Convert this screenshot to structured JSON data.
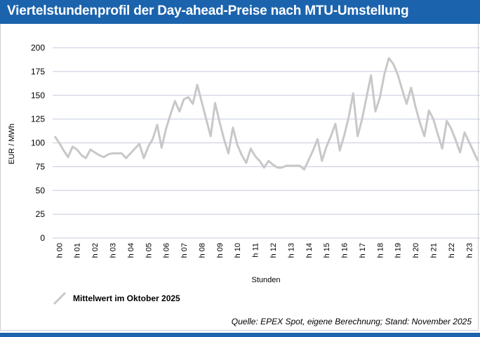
{
  "title": "Viertelstundenprofil der Day-ahead-Preise nach MTU-Umstellung",
  "source": "Quelle: EPEX Spot, eigene Berechnung; Stand: November 2025",
  "colors": {
    "brand": "#1b63ad",
    "line": "#c8c8c8",
    "grid": "#c5cbdb"
  },
  "chart_data": {
    "type": "line",
    "title": "Viertelstundenprofil der Day-ahead-Preise nach MTU-Umstellung",
    "xlabel": "Stunden",
    "ylabel": "EUR / MWh",
    "ylim": [
      0,
      200
    ],
    "yticks": [
      0,
      25,
      50,
      75,
      100,
      125,
      150,
      175,
      200
    ],
    "grid": true,
    "legend_position": "bottom-left",
    "xtick_labels": [
      "h 00",
      "h 01",
      "h 02",
      "h 03",
      "h 04",
      "h 05",
      "h 06",
      "h 07",
      "h 08",
      "h 09",
      "h 10",
      "h 11",
      "h 12",
      "h 13",
      "h 14",
      "h 15",
      "h 16",
      "h 17",
      "h 18",
      "h 19",
      "h 20",
      "h 21",
      "h 22",
      "h 23"
    ],
    "series": [
      {
        "name": "Mittelwert im Oktober 2025",
        "values": [
          107,
          100,
          92,
          85,
          96,
          93,
          87,
          84,
          93,
          90,
          87,
          85,
          88,
          89,
          89,
          89,
          84,
          89,
          94,
          99,
          84,
          96,
          104,
          119,
          95,
          115,
          130,
          144,
          133,
          146,
          148,
          141,
          161,
          143,
          125,
          107,
          142,
          122,
          104,
          89,
          116,
          98,
          87,
          79,
          94,
          86,
          81,
          74,
          81,
          77,
          74,
          74,
          76,
          76,
          76,
          76,
          72,
          82,
          92,
          104,
          81,
          96,
          107,
          120,
          92,
          108,
          127,
          152,
          107,
          125,
          148,
          171,
          133,
          148,
          172,
          189,
          183,
          172,
          156,
          141,
          158,
          138,
          121,
          107,
          134,
          125,
          109,
          94,
          123,
          115,
          103,
          90,
          111,
          101,
          91,
          81
        ]
      }
    ]
  }
}
